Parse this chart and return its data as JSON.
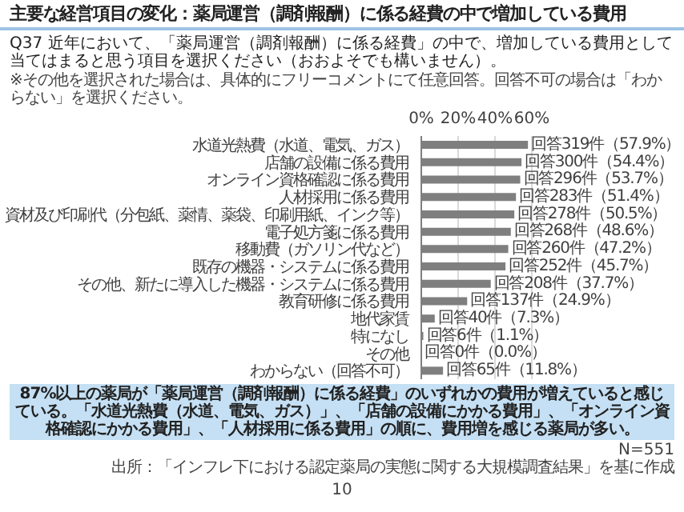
{
  "chart_data": {
    "type": "bar",
    "orientation": "horizontal",
    "title": "主要な経営項目の変化：薬局運営（調剤報酬）に係る経費の中で増加している費用",
    "subtitle": "Q37 近年において、「薬局運営（調剤報酬）に係る経費」の中で、増加している費用として当てはまると思う項目を選択ください（おおよそでも構いません）。",
    "categories": [
      "水道光熱費（水道、電気、ガス）",
      "店舗の設備に係る費用",
      "オンライン資格確認に係る費用",
      "人材採用に係る費用",
      "資材及び印刷代（分包紙、薬情、薬袋、印刷用紙、インク等）",
      "電子処方箋に係る費用",
      "移動費（ガソリン代など）",
      "既存の機器・システムに係る費用",
      "その他、新たに導入した機器・システムに係る費用",
      "教育研修に係る費用",
      "地代家賃",
      "特になし",
      "その他",
      "わからない（回答不可）"
    ],
    "values": [
      57.9,
      54.4,
      53.7,
      51.4,
      50.5,
      48.6,
      47.2,
      45.7,
      37.7,
      24.9,
      7.3,
      1.1,
      0.0,
      11.8
    ],
    "value_labels": [
      "回答319件（57.9%）",
      "回答300件（54.4%）",
      "回答296件（53.7%）",
      "回答283件（51.4%）",
      "回答278件（50.5%）",
      "回答268件（48.6%）",
      "回答260件（47.2%）",
      "回答252件（45.7%）",
      "回答208件（37.7%）",
      "回答137件（24.9%）",
      "回答40件（7.3%）",
      "回答6件（1.1%）",
      "回答0件（0.0%）",
      "回答65件（11.8%）"
    ],
    "color": "#7f7f7f",
    "xlim": [
      0,
      60
    ],
    "xticks": [
      {
        "value": 0,
        "label": "0%"
      },
      {
        "value": 20,
        "label": "20%"
      },
      {
        "value": 40,
        "label": "40%"
      },
      {
        "value": 60,
        "label": "60%"
      }
    ],
    "grid": "x",
    "annotations": [
      "※その他を選択された場合は、具体的にフリーコメントにて任意回答。回答不可の場合は「わからない」を選択ください。",
      "87%以上の薬局が「薬局運営（調剤報酬）に係る経費」のいずれかの費用が増えていると感じている。",
      "「水道光熱費（水道、電気、ガス）」、「店舗の設備にかかる費用」、「オンライン資格確認にかかる費用」、",
      "「人材採用に係る費用」の順に、費用増を感じる薬局が多い。",
      "N=551",
      "出所：「インフレ下における認定薬局の実態に関する大規模調査結果」を基に作成",
      "10"
    ]
  }
}
